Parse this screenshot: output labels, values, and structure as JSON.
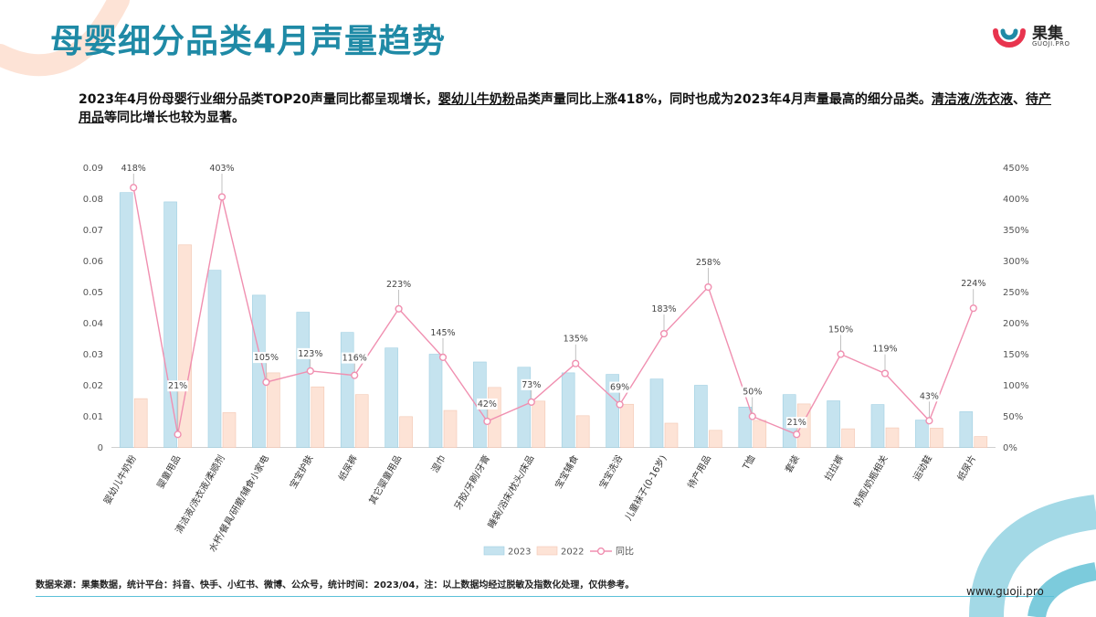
{
  "title": "母婴细分品类4月声量趋势",
  "logo": {
    "name": "果集",
    "sub": "GUOJI.PRO"
  },
  "summary": {
    "p1": "2023年4月份母婴行业细分品类TOP20声量同比都呈现增长，",
    "u1": "婴幼儿牛奶粉",
    "p2": "品类声量同比上涨418%，同时也成为2023年4月声量最高的细分品类。",
    "u2": "清洁液/洗衣液",
    "p3": "、",
    "u3": "待产用品",
    "p4": "等同比增长也较为显著。"
  },
  "footer": {
    "note": "数据来源：果集数据，统计平台：抖音、快手、小红书、微博、公众号，统计时间：2023/04，注：以上数据均经过脱敏及指数化处理，仅供参考。",
    "url": "www.guoji.pro"
  },
  "colors": {
    "bar2023": "#c5e3ef",
    "bar2022": "#fde3d6",
    "line": "#f08fb0",
    "title": "#1f8aa6"
  },
  "chart_data": {
    "type": "bar",
    "categories": [
      "婴幼儿牛奶粉",
      "婴童用品",
      "清洁液/洗衣液/柔顺剂",
      "水杯/餐具/研磨/辅食小家电",
      "宝宝护肤",
      "纸尿裤",
      "其它婴童用品",
      "湿巾",
      "牙胶/牙刷/牙膏",
      "睡袋/浴床/枕头/床品",
      "宝宝辅食",
      "宝宝洗浴",
      "儿童袜子(0-16岁)",
      "待产用品",
      "T恤",
      "套装",
      "拉拉裤",
      "奶瓶/奶瓶相关",
      "运动鞋",
      "纸尿片"
    ],
    "series": [
      {
        "name": "2023",
        "values": [
          0.082,
          0.079,
          0.057,
          0.049,
          0.0435,
          0.037,
          0.032,
          0.03,
          0.0275,
          0.0258,
          0.024,
          0.0235,
          0.022,
          0.02,
          0.013,
          0.017,
          0.015,
          0.0138,
          0.0088,
          0.0115
        ]
      },
      {
        "name": "2022",
        "values": [
          0.0157,
          0.0652,
          0.0112,
          0.024,
          0.0195,
          0.017,
          0.0099,
          0.0119,
          0.0193,
          0.0149,
          0.0102,
          0.0139,
          0.0078,
          0.0055,
          0.0087,
          0.014,
          0.006,
          0.0063,
          0.0062,
          0.0035
        ]
      },
      {
        "name": "同比",
        "values": [
          418,
          21,
          403,
          105,
          123,
          116,
          223,
          145,
          42,
          73,
          135,
          69,
          183,
          258,
          50,
          21,
          150,
          119,
          43,
          224
        ]
      }
    ],
    "labels": [
      "418%",
      "21%",
      "403%",
      "105%",
      "123%",
      "116%",
      "223%",
      "145%",
      "42%",
      "73%",
      "135%",
      "69%",
      "183%",
      "258%",
      "50%",
      "21%",
      "150%",
      "119%",
      "43%",
      "224%"
    ],
    "y_left_ticks": [
      "0",
      "0.01",
      "0.02",
      "0.03",
      "0.04",
      "0.05",
      "0.06",
      "0.07",
      "0.08",
      "0.09"
    ],
    "y_right_ticks": [
      "0%",
      "50%",
      "100%",
      "150%",
      "200%",
      "250%",
      "300%",
      "350%",
      "400%",
      "450%"
    ],
    "ylim_left": [
      0,
      0.09
    ],
    "ylim_right": [
      0,
      450
    ],
    "legend": [
      "2023",
      "2022",
      "同比"
    ],
    "legend_position": "bottom",
    "grid": false
  }
}
